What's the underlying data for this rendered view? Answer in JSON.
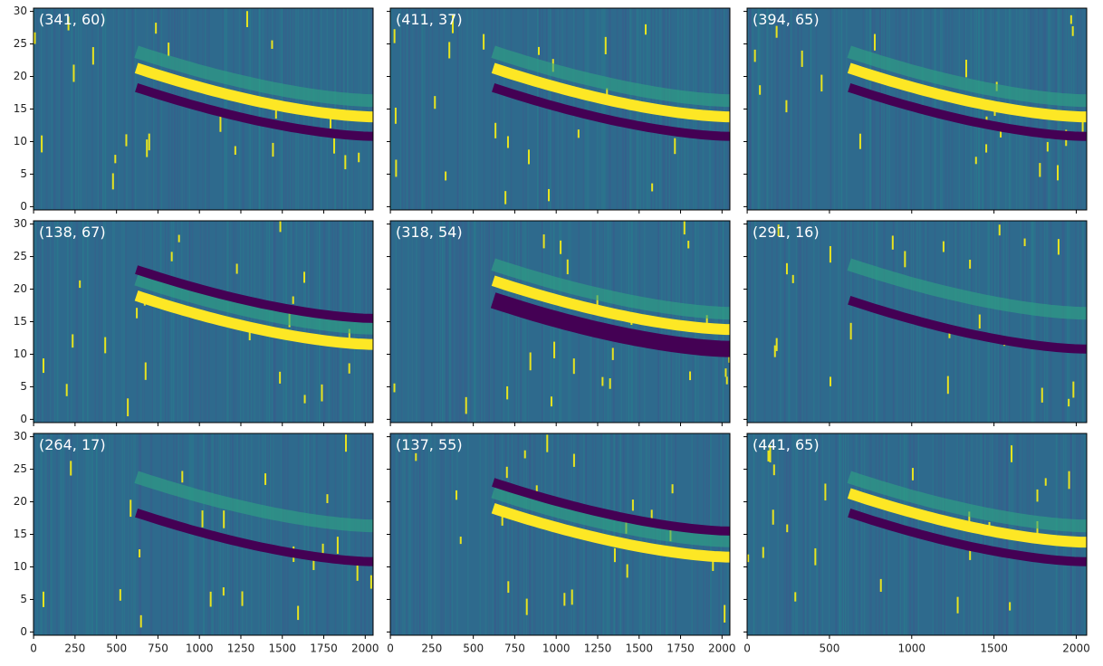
{
  "chart_data": [
    {
      "type": "heatmap",
      "title": "(341, 60)",
      "xlim": [
        -0.5,
        2047.5
      ],
      "ylim": [
        -0.5,
        30.5
      ],
      "xticks": [
        0,
        250,
        500,
        750,
        1000,
        1250,
        1500,
        1750,
        2000
      ],
      "yticks": [
        0,
        5,
        10,
        15,
        20,
        25,
        30
      ],
      "xtick_labels": false,
      "ytick_labels": true
    },
    {
      "type": "heatmap",
      "title": "(411, 37)",
      "xlim": [
        -0.5,
        2047.5
      ],
      "ylim": [
        -0.5,
        30.5
      ],
      "xticks": [
        0,
        250,
        500,
        750,
        1000,
        1250,
        1500,
        1750,
        2000
      ],
      "yticks": [
        0,
        5,
        10,
        15,
        20,
        25,
        30
      ],
      "xtick_labels": false,
      "ytick_labels": false
    },
    {
      "type": "heatmap",
      "title": "(394, 65)",
      "xlim": [
        -0.5,
        2063.5
      ],
      "ylim": [
        -0.5,
        30.5
      ],
      "xticks": [
        0,
        500,
        1000,
        1500,
        2000
      ],
      "yticks": [
        0,
        5,
        10,
        15,
        20,
        25,
        30
      ],
      "xtick_labels": false,
      "ytick_labels": false
    },
    {
      "type": "heatmap",
      "title": "(138, 67)",
      "xlim": [
        -0.5,
        2047.5
      ],
      "ylim": [
        -0.5,
        30.5
      ],
      "xticks": [
        0,
        250,
        500,
        750,
        1000,
        1250,
        1500,
        1750,
        2000
      ],
      "yticks": [
        0,
        5,
        10,
        15,
        20,
        25,
        30
      ],
      "xtick_labels": false,
      "ytick_labels": true
    },
    {
      "type": "heatmap",
      "title": "(318, 54)",
      "xlim": [
        -0.5,
        2047.5
      ],
      "ylim": [
        -0.5,
        30.5
      ],
      "xticks": [
        0,
        250,
        500,
        750,
        1000,
        1250,
        1500,
        1750,
        2000
      ],
      "yticks": [
        0,
        5,
        10,
        15,
        20,
        25,
        30
      ],
      "xtick_labels": false,
      "ytick_labels": false
    },
    {
      "type": "heatmap",
      "title": "(291, 16)",
      "xlim": [
        -0.5,
        2063.5
      ],
      "ylim": [
        -0.5,
        30.5
      ],
      "xticks": [
        0,
        500,
        1000,
        1500,
        2000
      ],
      "yticks": [
        0,
        5,
        10,
        15,
        20,
        25,
        30
      ],
      "xtick_labels": false,
      "ytick_labels": false
    },
    {
      "type": "heatmap",
      "title": "(264, 17)",
      "xlim": [
        -0.5,
        2047.5
      ],
      "ylim": [
        -0.5,
        30.5
      ],
      "xticks": [
        0,
        250,
        500,
        750,
        1000,
        1250,
        1500,
        1750,
        2000
      ],
      "yticks": [
        0,
        5,
        10,
        15,
        20,
        25,
        30
      ],
      "xtick_labels": true,
      "ytick_labels": true
    },
    {
      "type": "heatmap",
      "title": "(137, 55)",
      "xlim": [
        -0.5,
        2047.5
      ],
      "ylim": [
        -0.5,
        30.5
      ],
      "xticks": [
        0,
        250,
        500,
        750,
        1000,
        1250,
        1500,
        1750,
        2000
      ],
      "yticks": [
        0,
        5,
        10,
        15,
        20,
        25,
        30
      ],
      "xtick_labels": true,
      "ytick_labels": false
    },
    {
      "type": "heatmap",
      "title": "(441, 65)",
      "xlim": [
        -0.5,
        2063.5
      ],
      "ylim": [
        -0.5,
        30.5
      ],
      "xticks": [
        0,
        500,
        1000,
        1500,
        2000
      ],
      "yticks": [
        0,
        5,
        10,
        15,
        20,
        25,
        30
      ],
      "xtick_labels": true,
      "ytick_labels": false
    }
  ]
}
